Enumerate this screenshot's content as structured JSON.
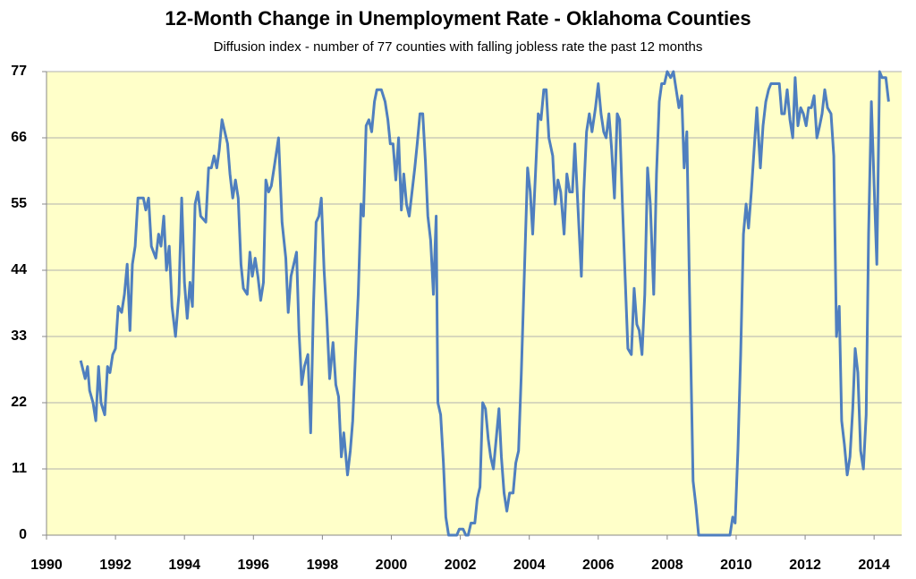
{
  "chart_data": {
    "type": "line",
    "title": "12-Month Change in Unemployment Rate - Oklahoma Counties",
    "subtitle": "Diffusion index - number of 77 counties with falling jobless rate the past 12 months",
    "xlim": [
      1990,
      2014.8
    ],
    "xticks": [
      1990,
      1992,
      1994,
      1996,
      1998,
      2000,
      2002,
      2004,
      2006,
      2008,
      2010,
      2012,
      2014
    ],
    "ylim": [
      0,
      77
    ],
    "yticks": [
      0,
      11,
      22,
      33,
      44,
      55,
      66,
      77
    ],
    "grid": true,
    "background": "#ffffc9",
    "series": [
      {
        "color": "#4f7fbf",
        "x": [
          1990.99,
          1991.12,
          1991.19,
          1991.25,
          1991.35,
          1991.43,
          1991.51,
          1991.58,
          1991.69,
          1991.77,
          1991.84,
          1991.92,
          1992.0,
          1992.08,
          1992.18,
          1992.26,
          1992.34,
          1992.42,
          1992.49,
          1992.57,
          1992.65,
          1992.81,
          1992.88,
          1992.96,
          1993.04,
          1993.17,
          1993.25,
          1993.32,
          1993.4,
          1993.48,
          1993.56,
          1993.64,
          1993.74,
          1993.84,
          1993.92,
          1994.0,
          1994.08,
          1994.16,
          1994.23,
          1994.31,
          1994.39,
          1994.47,
          1994.62,
          1994.7,
          1994.78,
          1994.86,
          1994.94,
          1995.01,
          1995.09,
          1995.25,
          1995.32,
          1995.4,
          1995.48,
          1995.56,
          1995.64,
          1995.71,
          1995.82,
          1995.9,
          1995.97,
          1996.05,
          1996.13,
          1996.21,
          1996.29,
          1996.36,
          1996.44,
          1996.52,
          1996.6,
          1996.73,
          1996.83,
          1996.94,
          1997.01,
          1997.09,
          1997.17,
          1997.25,
          1997.32,
          1997.4,
          1997.48,
          1997.58,
          1997.66,
          1997.74,
          1997.82,
          1997.9,
          1997.97,
          1998.05,
          1998.13,
          1998.21,
          1998.31,
          1998.39,
          1998.47,
          1998.55,
          1998.62,
          1998.73,
          1998.81,
          1998.88,
          1998.96,
          1999.04,
          1999.12,
          1999.19,
          1999.27,
          1999.35,
          1999.43,
          1999.51,
          1999.58,
          1999.71,
          1999.82,
          1999.9,
          1999.97,
          2000.05,
          2000.13,
          2000.21,
          2000.29,
          2000.36,
          2000.44,
          2000.52,
          2000.6,
          2000.68,
          2000.75,
          2000.83,
          2000.91,
          2000.99,
          2001.06,
          2001.14,
          2001.22,
          2001.3,
          2001.35,
          2001.43,
          2001.51,
          2001.58,
          2001.66,
          2001.9,
          2001.97,
          2002.08,
          2002.16,
          2002.23,
          2002.31,
          2002.42,
          2002.49,
          2002.57,
          2002.65,
          2002.73,
          2002.81,
          2002.88,
          2002.96,
          2003.04,
          2003.12,
          2003.19,
          2003.27,
          2003.35,
          2003.43,
          2003.53,
          2003.61,
          2003.69,
          2003.77,
          2003.87,
          2003.95,
          2004.03,
          2004.1,
          2004.18,
          2004.26,
          2004.34,
          2004.42,
          2004.49,
          2004.57,
          2004.68,
          2004.75,
          2004.83,
          2004.91,
          2005.01,
          2005.09,
          2005.17,
          2005.25,
          2005.32,
          2005.4,
          2005.51,
          2005.58,
          2005.66,
          2005.74,
          2005.82,
          2005.92,
          2006.0,
          2006.08,
          2006.16,
          2006.23,
          2006.31,
          2006.39,
          2006.47,
          2006.55,
          2006.62,
          2006.7,
          2006.78,
          2006.86,
          2006.96,
          2007.04,
          2007.12,
          2007.19,
          2007.27,
          2007.35,
          2007.43,
          2007.51,
          2007.61,
          2007.69,
          2007.77,
          2007.84,
          2007.92,
          2008.0,
          2008.1,
          2008.18,
          2008.26,
          2008.34,
          2008.42,
          2008.49,
          2008.57,
          2008.65,
          2008.75,
          2008.83,
          2008.91,
          2009.82,
          2009.9,
          2009.97,
          2010.05,
          2010.13,
          2010.21,
          2010.29,
          2010.36,
          2010.44,
          2010.52,
          2010.6,
          2010.7,
          2010.78,
          2010.86,
          2010.94,
          2011.01,
          2011.25,
          2011.32,
          2011.4,
          2011.48,
          2011.56,
          2011.64,
          2011.71,
          2011.79,
          2011.87,
          2011.95,
          2012.03,
          2012.1,
          2012.18,
          2012.26,
          2012.34,
          2012.42,
          2012.49,
          2012.57,
          2012.65,
          2012.75,
          2012.83,
          2012.91,
          2012.99,
          2013.06,
          2013.14,
          2013.22,
          2013.3,
          2013.38,
          2013.45,
          2013.53,
          2013.61,
          2013.69,
          2013.77,
          2013.84,
          2013.92,
          2014.0,
          2014.08,
          2014.16,
          2014.23,
          2014.34,
          2014.42
        ],
        "values": [
          29,
          26,
          28,
          24,
          22,
          19,
          28,
          22,
          20,
          28,
          27,
          30,
          31,
          38,
          37,
          40,
          45,
          34,
          45,
          48,
          56,
          56,
          54,
          56,
          48,
          46,
          50,
          48,
          53,
          44,
          48,
          38,
          33,
          40,
          56,
          42,
          36,
          42,
          38,
          55,
          57,
          53,
          52,
          61,
          61,
          63,
          61,
          64,
          69,
          65,
          60,
          56,
          59,
          56,
          45,
          41,
          40,
          47,
          43,
          46,
          43,
          39,
          42,
          59,
          57,
          58,
          61,
          66,
          52,
          46,
          37,
          43,
          45,
          47,
          34,
          25,
          28,
          30,
          17,
          38,
          52,
          53,
          56,
          44,
          36,
          26,
          32,
          25,
          23,
          13,
          17,
          10,
          14,
          19,
          30,
          40,
          55,
          53,
          68,
          69,
          67,
          72,
          74,
          74,
          72,
          69,
          65,
          65,
          59,
          66,
          54,
          60,
          55,
          53,
          57,
          61,
          65,
          70,
          70,
          62,
          53,
          49,
          40,
          53,
          22,
          20,
          12,
          3,
          0,
          0,
          1,
          1,
          0,
          0,
          2,
          2,
          6,
          8,
          22,
          21,
          16,
          13,
          11,
          16,
          21,
          13,
          7,
          4,
          7,
          7,
          12,
          14,
          27,
          46,
          61,
          57,
          50,
          60,
          70,
          69,
          74,
          74,
          66,
          63,
          55,
          59,
          57,
          50,
          60,
          57,
          57,
          65,
          56,
          43,
          57,
          67,
          70,
          67,
          71,
          75,
          70,
          67,
          66,
          70,
          64,
          56,
          70,
          69,
          55,
          43,
          31,
          30,
          41,
          35,
          34,
          30,
          40,
          61,
          55,
          40,
          60,
          72,
          75,
          75,
          77,
          76,
          77,
          74,
          71,
          73,
          61,
          67,
          40,
          9,
          5,
          0,
          0,
          3,
          2,
          14,
          30,
          50,
          55,
          51,
          57,
          64,
          71,
          61,
          68,
          72,
          74,
          75,
          75,
          70,
          70,
          74,
          69,
          66,
          76,
          68,
          71,
          70,
          68,
          71,
          71,
          73,
          66,
          68,
          70,
          74,
          71,
          70,
          63,
          33,
          38,
          19,
          15,
          10,
          13,
          21,
          31,
          27,
          14,
          11,
          20,
          50,
          72,
          58,
          45,
          77,
          76,
          76,
          72
        ]
      }
    ]
  }
}
